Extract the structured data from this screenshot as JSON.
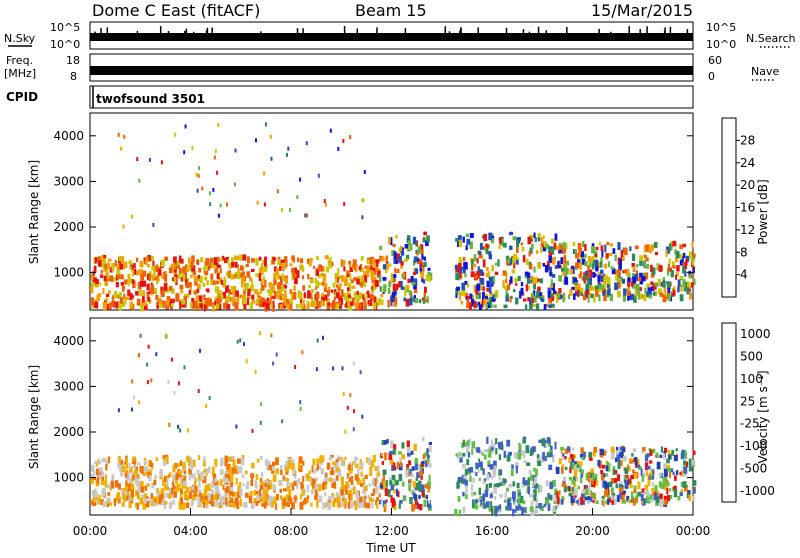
{
  "header": {
    "station": "Dome C East (fitACF)",
    "beam": "Beam 15",
    "date": "15/Mar/2015"
  },
  "strip_panels": {
    "nsky": {
      "label": "N.Sky",
      "left_ticks": [
        "10^5",
        "10^0"
      ],
      "right_label": "N.Search",
      "right_ticks": [
        "10^5",
        "10^0"
      ]
    },
    "freq": {
      "label_line1": "Freq.",
      "label_line2": "[MHz]",
      "left_ticks": [
        "18",
        "8"
      ],
      "right_label": "Nave",
      "right_ticks": [
        "60",
        "0"
      ]
    },
    "cpid": {
      "label": "CPID",
      "program": "twofsound 3501"
    }
  },
  "chart_data": [
    {
      "type": "heatmap",
      "name": "power",
      "ylabel": "Slant Range [km]",
      "xlabel": "",
      "ylim": [
        180,
        4500
      ],
      "xlim": [
        0,
        24
      ],
      "yticks": [
        "1000",
        "2000",
        "3000",
        "4000"
      ],
      "colorbar": {
        "label": "Power [dB]",
        "range": [
          0,
          32
        ],
        "ticks": [
          "4",
          "8",
          "12",
          "16",
          "20",
          "24",
          "28"
        ],
        "colors": [
          "#1010e0",
          "#2050b8",
          "#2d8a5a",
          "#60b840",
          "#c8c800",
          "#f0a000",
          "#f06000",
          "#e81010"
        ]
      },
      "scatter_regions": [
        {
          "t0": 0.0,
          "t1": 11.5,
          "r0": 300,
          "r1": 1400,
          "level": "high"
        },
        {
          "t0": 11.5,
          "t1": 13.5,
          "r0": 400,
          "r1": 1900,
          "level": "mid"
        },
        {
          "t0": 14.5,
          "t1": 18.5,
          "r0": 300,
          "r1": 1900,
          "level": "mid"
        },
        {
          "t0": 18.5,
          "t1": 24.0,
          "r0": 500,
          "r1": 1700,
          "level": "mid"
        }
      ]
    },
    {
      "type": "heatmap",
      "name": "velocity",
      "ylabel": "Slant Range [km]",
      "xlabel": "Time UT",
      "ylim": [
        180,
        4500
      ],
      "xlim": [
        0,
        24
      ],
      "yticks": [
        "1000",
        "2000",
        "3000",
        "4000"
      ],
      "xticks": [
        "00:00",
        "04:00",
        "08:00",
        "12:00",
        "16:00",
        "20:00",
        "00:00"
      ],
      "colorbar": {
        "label": "Velocity [m s⁻¹]",
        "ticks": [
          "1000",
          "500",
          "100",
          "25",
          "-25",
          "-100",
          "-500",
          "-1000"
        ],
        "colors": [
          "#2040b0",
          "#4060c8",
          "#2d8a5a",
          "#60c040",
          "#c8c8c8",
          "#f0b000",
          "#f07000",
          "#e81010"
        ]
      },
      "scatter_regions": [
        {
          "t0": 0.0,
          "t1": 11.5,
          "r0": 450,
          "r1": 1500,
          "level": "away"
        },
        {
          "t0": 11.5,
          "t1": 13.5,
          "r0": 400,
          "r1": 1900,
          "level": "mixed"
        },
        {
          "t0": 14.5,
          "t1": 18.5,
          "r0": 300,
          "r1": 1900,
          "level": "toward"
        },
        {
          "t0": 18.5,
          "t1": 24.0,
          "r0": 500,
          "r1": 1700,
          "level": "mixed"
        }
      ]
    }
  ]
}
